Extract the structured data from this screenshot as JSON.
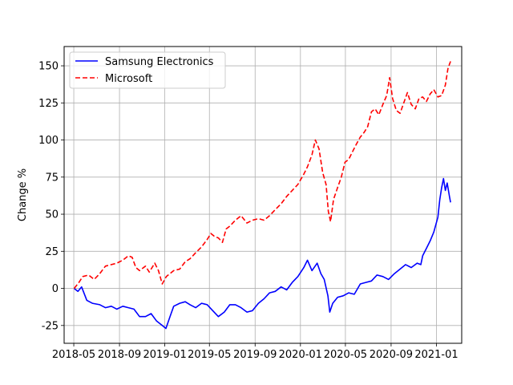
{
  "chart_data": {
    "type": "line",
    "title": "",
    "xlabel": "",
    "ylabel": "Change %",
    "x_axis_type": "date",
    "xlim": [
      "2018-04-05",
      "2021-03-10"
    ],
    "ylim": [
      -37,
      163
    ],
    "xticks": [
      "2018-05",
      "2018-09",
      "2019-01",
      "2019-05",
      "2019-09",
      "2020-01",
      "2020-05",
      "2020-09",
      "2021-01"
    ],
    "yticks": [
      -25,
      0,
      25,
      50,
      75,
      100,
      125,
      150
    ],
    "grid": true,
    "legend_position": "top-left",
    "series": [
      {
        "name": "Samsung Electronics",
        "color": "#0000ff",
        "line_style": "solid",
        "points": [
          [
            "2018-05-02",
            0
          ],
          [
            "2018-05-12",
            -2
          ],
          [
            "2018-05-22",
            1
          ],
          [
            "2018-06-05",
            -8
          ],
          [
            "2018-06-20",
            -10
          ],
          [
            "2018-07-10",
            -11
          ],
          [
            "2018-07-25",
            -13
          ],
          [
            "2018-08-10",
            -12
          ],
          [
            "2018-08-25",
            -14
          ],
          [
            "2018-09-10",
            -12
          ],
          [
            "2018-09-25",
            -13
          ],
          [
            "2018-10-10",
            -14
          ],
          [
            "2018-10-25",
            -19
          ],
          [
            "2018-11-10",
            -19
          ],
          [
            "2018-11-25",
            -17
          ],
          [
            "2018-12-10",
            -22
          ],
          [
            "2018-12-25",
            -25
          ],
          [
            "2019-01-04",
            -27
          ],
          [
            "2019-01-15",
            -19
          ],
          [
            "2019-01-25",
            -12
          ],
          [
            "2019-02-10",
            -10
          ],
          [
            "2019-02-25",
            -9
          ],
          [
            "2019-03-10",
            -11
          ],
          [
            "2019-03-25",
            -13
          ],
          [
            "2019-04-10",
            -10
          ],
          [
            "2019-04-25",
            -11
          ],
          [
            "2019-05-10",
            -15
          ],
          [
            "2019-05-25",
            -19
          ],
          [
            "2019-06-10",
            -16
          ],
          [
            "2019-06-25",
            -11
          ],
          [
            "2019-07-10",
            -11
          ],
          [
            "2019-07-25",
            -13
          ],
          [
            "2019-08-10",
            -16
          ],
          [
            "2019-08-25",
            -15
          ],
          [
            "2019-09-10",
            -10
          ],
          [
            "2019-09-25",
            -7
          ],
          [
            "2019-10-10",
            -3
          ],
          [
            "2019-10-25",
            -2
          ],
          [
            "2019-11-10",
            1
          ],
          [
            "2019-11-25",
            -1
          ],
          [
            "2019-12-10",
            4
          ],
          [
            "2019-12-25",
            8
          ],
          [
            "2020-01-10",
            14
          ],
          [
            "2020-01-20",
            19
          ],
          [
            "2020-02-01",
            12
          ],
          [
            "2020-02-15",
            17
          ],
          [
            "2020-02-25",
            10
          ],
          [
            "2020-03-05",
            6
          ],
          [
            "2020-03-15",
            -5
          ],
          [
            "2020-03-20",
            -16
          ],
          [
            "2020-03-28",
            -10
          ],
          [
            "2020-04-10",
            -6
          ],
          [
            "2020-04-25",
            -5
          ],
          [
            "2020-05-10",
            -3
          ],
          [
            "2020-05-25",
            -4
          ],
          [
            "2020-06-10",
            3
          ],
          [
            "2020-06-25",
            4
          ],
          [
            "2020-07-10",
            5
          ],
          [
            "2020-07-25",
            9
          ],
          [
            "2020-08-10",
            8
          ],
          [
            "2020-08-25",
            6
          ],
          [
            "2020-09-10",
            10
          ],
          [
            "2020-09-25",
            13
          ],
          [
            "2020-10-10",
            16
          ],
          [
            "2020-10-25",
            14
          ],
          [
            "2020-11-10",
            17
          ],
          [
            "2020-11-20",
            16
          ],
          [
            "2020-11-25",
            22
          ],
          [
            "2020-12-05",
            27
          ],
          [
            "2020-12-15",
            32
          ],
          [
            "2020-12-25",
            38
          ],
          [
            "2021-01-05",
            48
          ],
          [
            "2021-01-10",
            60
          ],
          [
            "2021-01-15",
            68
          ],
          [
            "2021-01-20",
            74
          ],
          [
            "2021-01-25",
            66
          ],
          [
            "2021-01-30",
            71
          ],
          [
            "2021-02-05",
            62
          ],
          [
            "2021-02-08",
            58
          ]
        ]
      },
      {
        "name": "Microsoft",
        "color": "#ff0000",
        "line_style": "dashed",
        "points": [
          [
            "2018-05-02",
            0
          ],
          [
            "2018-05-15",
            4
          ],
          [
            "2018-05-25",
            8
          ],
          [
            "2018-06-10",
            9
          ],
          [
            "2018-06-25",
            6
          ],
          [
            "2018-07-10",
            10
          ],
          [
            "2018-07-25",
            15
          ],
          [
            "2018-08-10",
            16
          ],
          [
            "2018-08-25",
            17
          ],
          [
            "2018-09-10",
            19
          ],
          [
            "2018-09-25",
            22
          ],
          [
            "2018-10-05",
            21
          ],
          [
            "2018-10-15",
            14
          ],
          [
            "2018-10-25",
            12
          ],
          [
            "2018-11-10",
            15
          ],
          [
            "2018-11-20",
            11
          ],
          [
            "2018-12-05",
            17
          ],
          [
            "2018-12-15",
            12
          ],
          [
            "2018-12-25",
            3
          ],
          [
            "2019-01-05",
            8
          ],
          [
            "2019-01-15",
            10
          ],
          [
            "2019-01-25",
            12
          ],
          [
            "2019-02-10",
            13
          ],
          [
            "2019-02-25",
            18
          ],
          [
            "2019-03-10",
            20
          ],
          [
            "2019-03-25",
            24
          ],
          [
            "2019-04-10",
            28
          ],
          [
            "2019-04-25",
            33
          ],
          [
            "2019-05-05",
            37
          ],
          [
            "2019-05-15",
            35
          ],
          [
            "2019-05-25",
            34
          ],
          [
            "2019-06-05",
            31
          ],
          [
            "2019-06-15",
            40
          ],
          [
            "2019-06-25",
            42
          ],
          [
            "2019-07-10",
            46
          ],
          [
            "2019-07-25",
            49
          ],
          [
            "2019-08-10",
            44
          ],
          [
            "2019-08-25",
            46
          ],
          [
            "2019-09-10",
            47
          ],
          [
            "2019-09-25",
            46
          ],
          [
            "2019-10-10",
            49
          ],
          [
            "2019-10-25",
            53
          ],
          [
            "2019-11-10",
            57
          ],
          [
            "2019-11-25",
            62
          ],
          [
            "2019-12-10",
            66
          ],
          [
            "2019-12-25",
            70
          ],
          [
            "2020-01-10",
            77
          ],
          [
            "2020-01-20",
            82
          ],
          [
            "2020-02-01",
            90
          ],
          [
            "2020-02-10",
            100
          ],
          [
            "2020-02-20",
            94
          ],
          [
            "2020-03-01",
            78
          ],
          [
            "2020-03-10",
            70
          ],
          [
            "2020-03-16",
            52
          ],
          [
            "2020-03-22",
            45
          ],
          [
            "2020-03-30",
            60
          ],
          [
            "2020-04-10",
            68
          ],
          [
            "2020-04-20",
            75
          ],
          [
            "2020-04-30",
            85
          ],
          [
            "2020-05-10",
            87
          ],
          [
            "2020-05-20",
            92
          ],
          [
            "2020-05-30",
            97
          ],
          [
            "2020-06-10",
            102
          ],
          [
            "2020-06-20",
            105
          ],
          [
            "2020-06-30",
            109
          ],
          [
            "2020-07-10",
            119
          ],
          [
            "2020-07-20",
            121
          ],
          [
            "2020-07-30",
            117
          ],
          [
            "2020-08-10",
            124
          ],
          [
            "2020-08-20",
            130
          ],
          [
            "2020-08-28",
            142
          ],
          [
            "2020-09-05",
            128
          ],
          [
            "2020-09-15",
            120
          ],
          [
            "2020-09-25",
            118
          ],
          [
            "2020-10-05",
            125
          ],
          [
            "2020-10-15",
            132
          ],
          [
            "2020-10-25",
            124
          ],
          [
            "2020-11-05",
            121
          ],
          [
            "2020-11-15",
            128
          ],
          [
            "2020-11-25",
            129
          ],
          [
            "2020-12-05",
            126
          ],
          [
            "2020-12-15",
            131
          ],
          [
            "2020-12-25",
            134
          ],
          [
            "2021-01-05",
            129
          ],
          [
            "2021-01-15",
            130
          ],
          [
            "2021-01-25",
            137
          ],
          [
            "2021-02-01",
            148
          ],
          [
            "2021-02-05",
            151
          ],
          [
            "2021-02-08",
            153
          ]
        ]
      }
    ]
  }
}
